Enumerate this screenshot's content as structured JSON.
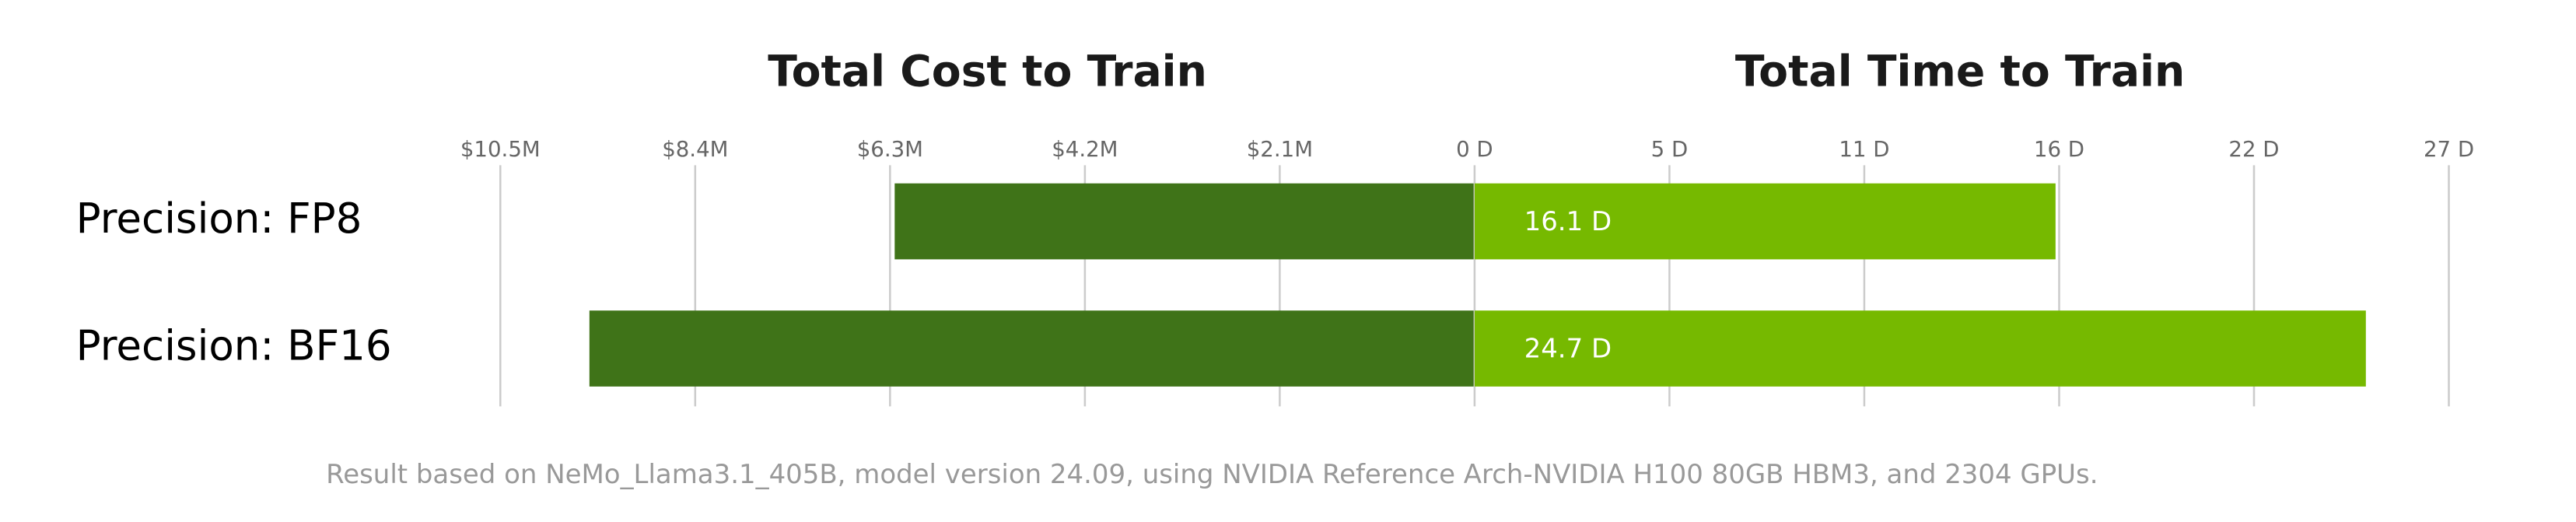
{
  "chart_data": [
    {
      "type": "bar",
      "orientation": "horizontal",
      "direction": "leftward",
      "title": "Total Cost to Train",
      "categories": [
        "Precision: FP8",
        "Precision: BF16"
      ],
      "values": [
        6.25,
        9.54
      ],
      "color": "#3f7318",
      "xlim": [
        0,
        10.5
      ],
      "xticks": [
        {
          "value": 2.1,
          "label": "$2.1M"
        },
        {
          "value": 4.2,
          "label": "$4.2M"
        },
        {
          "value": 6.3,
          "label": "$6.3M"
        },
        {
          "value": 8.4,
          "label": "$8.4M"
        },
        {
          "value": 10.5,
          "label": "$10.5M"
        }
      ],
      "grid": true
    },
    {
      "type": "bar",
      "orientation": "horizontal",
      "direction": "rightward",
      "title": "Total Time to Train",
      "values": [
        16.1,
        24.7
      ],
      "value_labels": [
        "16.1 D",
        "24.7 D"
      ],
      "color": "#76b900",
      "xlim": [
        0,
        27
      ],
      "xticks": [
        {
          "value": 0,
          "label": "0 D"
        },
        {
          "value": 5.4,
          "label": "5 D"
        },
        {
          "value": 10.8,
          "label": "11 D"
        },
        {
          "value": 16.2,
          "label": "16 D"
        },
        {
          "value": 21.6,
          "label": "22 D"
        },
        {
          "value": 27,
          "label": "27 D"
        }
      ],
      "grid": true
    }
  ],
  "footnote": "Result based on NeMo_Llama3.1_405B, model version 24.09, using NVIDIA Reference Arch-NVIDIA H100 80GB HBM3, and 2304 GPUs."
}
